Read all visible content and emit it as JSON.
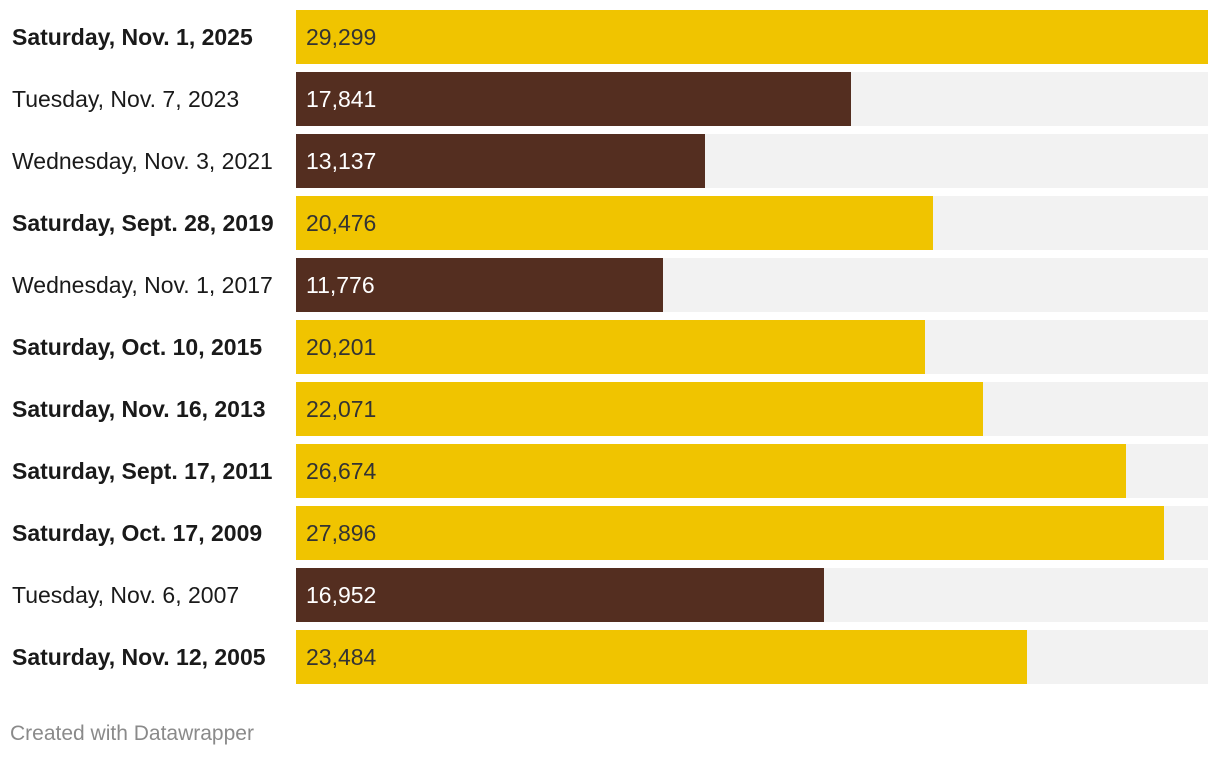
{
  "chart_data": {
    "type": "bar",
    "orientation": "horizontal",
    "title": "",
    "xlabel": "",
    "ylabel": "",
    "xlim": [
      0,
      29299
    ],
    "grid": false,
    "categories": [
      "Saturday, Nov. 1, 2025",
      "Tuesday, Nov. 7, 2023",
      "Wednesday, Nov. 3, 2021",
      "Saturday, Sept. 28, 2019",
      "Wednesday, Nov. 1, 2017",
      "Saturday, Oct. 10, 2015",
      "Saturday, Nov. 16, 2013",
      "Saturday, Sept. 17, 2011",
      "Saturday, Oct. 17, 2009",
      "Tuesday, Nov. 6, 2007",
      "Saturday, Nov. 12, 2005"
    ],
    "values": [
      29299,
      17841,
      13137,
      20476,
      11776,
      20201,
      22071,
      26674,
      27896,
      16952,
      23484
    ],
    "value_labels": [
      "29,299",
      "17,841",
      "13,137",
      "20,476",
      "11,776",
      "20,201",
      "22,071",
      "26,674",
      "27,896",
      "16,952",
      "23,484"
    ],
    "highlight": [
      true,
      false,
      false,
      true,
      false,
      true,
      true,
      true,
      true,
      false,
      true
    ],
    "colors": {
      "saturday": "#f0c400",
      "weekday": "#542e20",
      "track": "#f2f2f2",
      "saturday_text": "#333333",
      "weekday_text": "#ffffff"
    }
  },
  "footer": {
    "credit": "Created with Datawrapper"
  }
}
